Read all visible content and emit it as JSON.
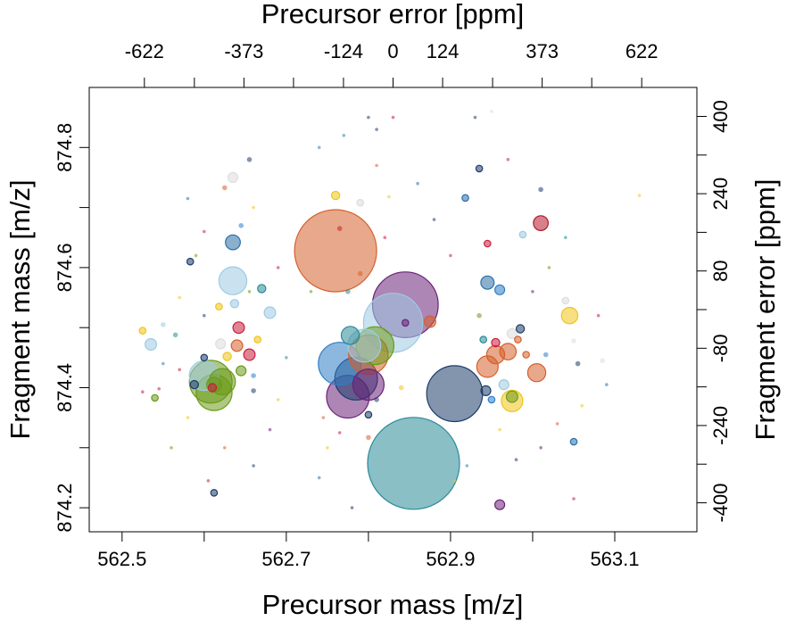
{
  "chart_data": {
    "type": "scatter",
    "xlabel": "Precursor mass [m/z]",
    "ylabel": "Fragment mass [m/z]",
    "top_label": "Precursor error [ppm]",
    "right_label": "Fragment error [ppm]",
    "xlim": [
      562.46,
      563.2
    ],
    "ylim": [
      874.16,
      874.9
    ],
    "top_lim": [
      -760,
      760
    ],
    "right_lim": [
      -460,
      460
    ],
    "x_ticks": [
      562.5,
      562.7,
      562.9,
      563.1
    ],
    "x_tick_labels": [
      "562.5",
      "562.7",
      "562.9",
      "563.1"
    ],
    "y_ticks": [
      874.2,
      874.4,
      874.6,
      874.8
    ],
    "y_tick_labels": [
      "874.2",
      "874.4",
      "874.6",
      "874.8"
    ],
    "top_ticks": [
      -622,
      -373,
      -124,
      0,
      124,
      373,
      622
    ],
    "top_tick_labels": [
      "-622",
      "-373",
      "-124",
      "0",
      "124",
      "373",
      "622"
    ],
    "right_ticks": [
      400,
      240,
      80,
      -80,
      -240,
      -400
    ],
    "right_tick_labels": [
      "400",
      "240",
      "80",
      "-80",
      "-240",
      "-400"
    ],
    "grid": false,
    "point_opacity": 0.55,
    "points": [
      {
        "x": 562.76,
        "y": 874.628,
        "r": 0.05,
        "color": "#D5602C"
      },
      {
        "x": 562.855,
        "y": 874.274,
        "r": 0.056,
        "color": "#2A8A98"
      },
      {
        "x": 562.845,
        "y": 874.538,
        "r": 0.04,
        "color": "#6A2278"
      },
      {
        "x": 562.83,
        "y": 874.508,
        "r": 0.036,
        "color": "#9ECAE1"
      },
      {
        "x": 562.905,
        "y": 874.39,
        "r": 0.034,
        "color": "#1D3D69"
      },
      {
        "x": 562.775,
        "y": 874.385,
        "r": 0.026,
        "color": "#6A2278"
      },
      {
        "x": 562.785,
        "y": 874.415,
        "r": 0.026,
        "color": "#1D3D69"
      },
      {
        "x": 562.765,
        "y": 874.44,
        "r": 0.026,
        "color": "#2E7EC7"
      },
      {
        "x": 562.8,
        "y": 874.455,
        "r": 0.024,
        "color": "#D5602C"
      },
      {
        "x": 562.808,
        "y": 874.47,
        "r": 0.023,
        "color": "#6C9A1A"
      },
      {
        "x": 562.795,
        "y": 874.47,
        "r": 0.02,
        "color": "#9ECAE1"
      },
      {
        "x": 562.8,
        "y": 874.405,
        "r": 0.019,
        "color": "#6A2278"
      },
      {
        "x": 562.778,
        "y": 874.487,
        "r": 0.011,
        "color": "#2A8A98"
      },
      {
        "x": 562.608,
        "y": 874.41,
        "r": 0.026,
        "color": "#6C9A1A"
      },
      {
        "x": 562.612,
        "y": 874.392,
        "r": 0.022,
        "color": "#6C9A1A"
      },
      {
        "x": 562.6,
        "y": 874.42,
        "r": 0.018,
        "color": "#9ECAE1"
      },
      {
        "x": 562.612,
        "y": 874.405,
        "r": 0.009,
        "color": "#6C9A1A"
      },
      {
        "x": 562.622,
        "y": 874.41,
        "r": 0.016,
        "color": "#6C9A1A"
      },
      {
        "x": 562.635,
        "y": 874.578,
        "r": 0.017,
        "color": "#9ECAE1"
      },
      {
        "x": 562.635,
        "y": 874.642,
        "r": 0.009,
        "color": "#2B6FA6"
      },
      {
        "x": 562.588,
        "y": 874.405,
        "r": 0.005,
        "color": "#1D3D69"
      },
      {
        "x": 562.64,
        "y": 874.47,
        "r": 0.007,
        "color": "#D5602C"
      },
      {
        "x": 562.642,
        "y": 874.5,
        "r": 0.007,
        "color": "#C81E3C"
      },
      {
        "x": 562.655,
        "y": 874.455,
        "r": 0.007,
        "color": "#C81E3C"
      },
      {
        "x": 562.645,
        "y": 874.428,
        "r": 0.006,
        "color": "#6C9A1A"
      },
      {
        "x": 562.637,
        "y": 874.54,
        "r": 0.005,
        "color": "#9ECAE1"
      },
      {
        "x": 562.628,
        "y": 874.452,
        "r": 0.005,
        "color": "#F0C419"
      },
      {
        "x": 562.61,
        "y": 874.4,
        "r": 0.005,
        "color": "#C81E3C"
      },
      {
        "x": 562.535,
        "y": 874.472,
        "r": 0.007,
        "color": "#9ECAE1"
      },
      {
        "x": 562.525,
        "y": 874.495,
        "r": 0.004,
        "color": "#F0C419"
      },
      {
        "x": 562.55,
        "y": 874.505,
        "r": 0.003,
        "color": "#9ECAE1"
      },
      {
        "x": 562.565,
        "y": 874.488,
        "r": 0.003,
        "color": "#2A8A98"
      },
      {
        "x": 562.545,
        "y": 874.398,
        "r": 0.002,
        "color": "#C81E3C"
      },
      {
        "x": 562.54,
        "y": 874.383,
        "r": 0.004,
        "color": "#6C9A1A"
      },
      {
        "x": 562.525,
        "y": 874.393,
        "r": 0.002,
        "color": "#C81E3C"
      },
      {
        "x": 562.583,
        "y": 874.61,
        "r": 0.004,
        "color": "#1D3D69"
      },
      {
        "x": 562.62,
        "y": 874.473,
        "r": 0.006,
        "color": "#DDDDDD"
      },
      {
        "x": 562.635,
        "y": 874.75,
        "r": 0.006,
        "color": "#DDDDDD"
      },
      {
        "x": 562.625,
        "y": 874.733,
        "r": 0.003,
        "color": "#D5602C"
      },
      {
        "x": 562.6,
        "y": 874.45,
        "r": 0.004,
        "color": "#1D3D69"
      },
      {
        "x": 562.665,
        "y": 874.48,
        "r": 0.004,
        "color": "#F0C419"
      },
      {
        "x": 562.67,
        "y": 874.565,
        "r": 0.005,
        "color": "#2A8A98"
      },
      {
        "x": 562.68,
        "y": 874.525,
        "r": 0.007,
        "color": "#9ECAE1"
      },
      {
        "x": 562.618,
        "y": 874.535,
        "r": 0.004,
        "color": "#F0C419"
      },
      {
        "x": 562.66,
        "y": 874.42,
        "r": 0.003,
        "color": "#2E7EC7"
      },
      {
        "x": 562.66,
        "y": 874.395,
        "r": 0.003,
        "color": "#1D3D69"
      },
      {
        "x": 562.612,
        "y": 874.225,
        "r": 0.004,
        "color": "#1D3D69"
      },
      {
        "x": 562.605,
        "y": 874.245,
        "r": 0.002,
        "color": "#C81E3C"
      },
      {
        "x": 562.975,
        "y": 874.378,
        "r": 0.013,
        "color": "#F0C419"
      },
      {
        "x": 562.975,
        "y": 874.385,
        "r": 0.007,
        "color": "#6C9A1A"
      },
      {
        "x": 562.945,
        "y": 874.435,
        "r": 0.013,
        "color": "#D5602C"
      },
      {
        "x": 562.955,
        "y": 874.455,
        "r": 0.011,
        "color": "#D5602C"
      },
      {
        "x": 562.97,
        "y": 874.46,
        "r": 0.01,
        "color": "#D5602C"
      },
      {
        "x": 563.005,
        "y": 874.425,
        "r": 0.011,
        "color": "#D5602C"
      },
      {
        "x": 562.945,
        "y": 874.575,
        "r": 0.008,
        "color": "#2B6FA6"
      },
      {
        "x": 562.96,
        "y": 874.563,
        "r": 0.006,
        "color": "#2E7EC7"
      },
      {
        "x": 562.975,
        "y": 874.49,
        "r": 0.006,
        "color": "#DDDDDD"
      },
      {
        "x": 562.985,
        "y": 874.498,
        "r": 0.005,
        "color": "#1D3D69"
      },
      {
        "x": 562.982,
        "y": 874.48,
        "r": 0.004,
        "color": "#D5602C"
      },
      {
        "x": 562.992,
        "y": 874.455,
        "r": 0.004,
        "color": "#D5602C"
      },
      {
        "x": 563.01,
        "y": 874.674,
        "r": 0.009,
        "color": "#B2182B"
      },
      {
        "x": 563.045,
        "y": 874.52,
        "r": 0.01,
        "color": "#F0C419"
      },
      {
        "x": 563.04,
        "y": 874.545,
        "r": 0.004,
        "color": "#DDDDDD"
      },
      {
        "x": 563.05,
        "y": 874.478,
        "r": 0.003,
        "color": "#DDDDDD"
      },
      {
        "x": 563.085,
        "y": 874.445,
        "r": 0.003,
        "color": "#DDDDDD"
      },
      {
        "x": 563.05,
        "y": 874.31,
        "r": 0.004,
        "color": "#2B6FA6"
      },
      {
        "x": 563.055,
        "y": 874.44,
        "r": 0.003,
        "color": "#1D3D69"
      },
      {
        "x": 562.943,
        "y": 874.395,
        "r": 0.006,
        "color": "#1D3D69"
      },
      {
        "x": 562.965,
        "y": 874.405,
        "r": 0.006,
        "color": "#9ECAE1"
      },
      {
        "x": 562.955,
        "y": 874.475,
        "r": 0.005,
        "color": "#C81E3C"
      },
      {
        "x": 562.94,
        "y": 874.48,
        "r": 0.004,
        "color": "#2A8A98"
      },
      {
        "x": 562.935,
        "y": 874.52,
        "r": 0.003,
        "color": "#6C9A1A"
      },
      {
        "x": 562.95,
        "y": 874.38,
        "r": 0.004,
        "color": "#2E7EC7"
      },
      {
        "x": 562.935,
        "y": 874.765,
        "r": 0.004,
        "color": "#1D3D69"
      },
      {
        "x": 562.918,
        "y": 874.716,
        "r": 0.004,
        "color": "#2B6FA6"
      },
      {
        "x": 562.945,
        "y": 874.64,
        "r": 0.004,
        "color": "#C81E3C"
      },
      {
        "x": 562.988,
        "y": 874.655,
        "r": 0.004,
        "color": "#9ECAE1"
      },
      {
        "x": 563.01,
        "y": 874.73,
        "r": 0.003,
        "color": "#1D3D69"
      },
      {
        "x": 563.016,
        "y": 874.455,
        "r": 0.003,
        "color": "#2E7EC7"
      },
      {
        "x": 562.96,
        "y": 874.205,
        "r": 0.006,
        "color": "#6A2278"
      },
      {
        "x": 562.905,
        "y": 874.245,
        "r": 0.002,
        "color": "#F0C419"
      },
      {
        "x": 562.76,
        "y": 874.72,
        "r": 0.005,
        "color": "#F0C419"
      },
      {
        "x": 562.79,
        "y": 874.708,
        "r": 0.004,
        "color": "#DDDDDD"
      },
      {
        "x": 562.765,
        "y": 874.665,
        "r": 0.003,
        "color": "#C81E3C"
      },
      {
        "x": 562.79,
        "y": 874.59,
        "r": 0.003,
        "color": "#D5602C"
      },
      {
        "x": 562.845,
        "y": 874.508,
        "r": 0.004,
        "color": "#6A2278"
      },
      {
        "x": 562.875,
        "y": 874.51,
        "r": 0.007,
        "color": "#D5602C"
      },
      {
        "x": 562.8,
        "y": 874.355,
        "r": 0.004,
        "color": "#1D3D69"
      },
      {
        "x": 562.81,
        "y": 874.38,
        "r": 0.003,
        "color": "#1D3D69"
      },
      {
        "x": 562.8,
        "y": 874.317,
        "r": 0.003,
        "color": "#D5602C"
      },
      {
        "x": 562.765,
        "y": 874.325,
        "r": 0.002,
        "color": "#C81E3C"
      },
      {
        "x": 562.84,
        "y": 874.4,
        "r": 0.003,
        "color": "#F0C419"
      },
      {
        "x": 562.81,
        "y": 874.83,
        "r": 0.002,
        "color": "#1D3D69"
      },
      {
        "x": 562.81,
        "y": 874.77,
        "r": 0.002,
        "color": "#D5602C"
      },
      {
        "x": 562.825,
        "y": 874.718,
        "r": 0.002,
        "color": "#F0C419"
      },
      {
        "x": 562.775,
        "y": 874.56,
        "r": 0.003,
        "color": "#2A8A98"
      },
      {
        "x": 562.82,
        "y": 874.65,
        "r": 0.002,
        "color": "#C81E3C"
      },
      {
        "x": 563.13,
        "y": 874.72,
        "r": 0.002,
        "color": "#F0C419"
      },
      {
        "x": 563.0,
        "y": 874.56,
        "r": 0.002,
        "color": "#6A2278"
      },
      {
        "x": 563.02,
        "y": 874.6,
        "r": 0.002,
        "color": "#6C9A1A"
      },
      {
        "x": 563.04,
        "y": 874.65,
        "r": 0.002,
        "color": "#2A8A98"
      },
      {
        "x": 563.08,
        "y": 874.52,
        "r": 0.002,
        "color": "#C81E3C"
      },
      {
        "x": 563.06,
        "y": 874.37,
        "r": 0.002,
        "color": "#F0C419"
      },
      {
        "x": 563.09,
        "y": 874.405,
        "r": 0.002,
        "color": "#2B6FA6"
      },
      {
        "x": 563.03,
        "y": 874.34,
        "r": 0.002,
        "color": "#D5602C"
      },
      {
        "x": 563.01,
        "y": 874.3,
        "r": 0.002,
        "color": "#6A2278"
      },
      {
        "x": 562.98,
        "y": 874.28,
        "r": 0.002,
        "color": "#1D3D69"
      },
      {
        "x": 562.92,
        "y": 874.27,
        "r": 0.002,
        "color": "#2A8A98"
      },
      {
        "x": 563.05,
        "y": 874.215,
        "r": 0.002,
        "color": "#C81E3C"
      },
      {
        "x": 562.96,
        "y": 874.33,
        "r": 0.002,
        "color": "#F0C419"
      },
      {
        "x": 562.9,
        "y": 874.62,
        "r": 0.002,
        "color": "#C81E3C"
      },
      {
        "x": 562.88,
        "y": 874.68,
        "r": 0.002,
        "color": "#1D3D69"
      },
      {
        "x": 562.86,
        "y": 874.74,
        "r": 0.002,
        "color": "#2B6FA6"
      },
      {
        "x": 562.93,
        "y": 874.85,
        "r": 0.002,
        "color": "#1D3D69"
      },
      {
        "x": 562.95,
        "y": 874.86,
        "r": 0.002,
        "color": "#DDDDDD"
      },
      {
        "x": 562.97,
        "y": 874.78,
        "r": 0.002,
        "color": "#C81E3C"
      },
      {
        "x": 562.58,
        "y": 874.715,
        "r": 0.002,
        "color": "#2B6FA6"
      },
      {
        "x": 562.59,
        "y": 874.62,
        "r": 0.002,
        "color": "#6C9A1A"
      },
      {
        "x": 562.57,
        "y": 874.55,
        "r": 0.002,
        "color": "#F0C419"
      },
      {
        "x": 562.6,
        "y": 874.66,
        "r": 0.002,
        "color": "#C81E3C"
      },
      {
        "x": 562.655,
        "y": 874.78,
        "r": 0.003,
        "color": "#1D3D69"
      },
      {
        "x": 562.645,
        "y": 874.67,
        "r": 0.003,
        "color": "#2E7EC7"
      },
      {
        "x": 562.66,
        "y": 874.7,
        "r": 0.002,
        "color": "#F0C419"
      },
      {
        "x": 562.655,
        "y": 874.56,
        "r": 0.002,
        "color": "#6C9A1A"
      },
      {
        "x": 562.69,
        "y": 874.6,
        "r": 0.002,
        "color": "#C81E3C"
      },
      {
        "x": 562.7,
        "y": 874.45,
        "r": 0.002,
        "color": "#2A8A98"
      },
      {
        "x": 562.69,
        "y": 874.38,
        "r": 0.002,
        "color": "#F0C419"
      },
      {
        "x": 562.68,
        "y": 874.33,
        "r": 0.002,
        "color": "#6A2278"
      },
      {
        "x": 562.66,
        "y": 874.27,
        "r": 0.002,
        "color": "#1D3D69"
      },
      {
        "x": 562.625,
        "y": 874.3,
        "r": 0.002,
        "color": "#D5602C"
      },
      {
        "x": 562.58,
        "y": 874.35,
        "r": 0.002,
        "color": "#F0C419"
      },
      {
        "x": 562.56,
        "y": 874.3,
        "r": 0.002,
        "color": "#6C9A1A"
      },
      {
        "x": 562.55,
        "y": 874.44,
        "r": 0.002,
        "color": "#2E7EC7"
      },
      {
        "x": 562.6,
        "y": 874.52,
        "r": 0.002,
        "color": "#1D3D69"
      },
      {
        "x": 562.57,
        "y": 874.43,
        "r": 0.002,
        "color": "#C81E3C"
      },
      {
        "x": 562.74,
        "y": 874.25,
        "r": 0.002,
        "color": "#2B6FA6"
      },
      {
        "x": 562.75,
        "y": 874.3,
        "r": 0.002,
        "color": "#F0C419"
      },
      {
        "x": 562.78,
        "y": 874.2,
        "r": 0.002,
        "color": "#1D3D69"
      },
      {
        "x": 562.745,
        "y": 874.35,
        "r": 0.002,
        "color": "#D5602C"
      },
      {
        "x": 562.73,
        "y": 874.56,
        "r": 0.002,
        "color": "#6C9A1A"
      },
      {
        "x": 562.74,
        "y": 874.8,
        "r": 0.002,
        "color": "#2E7EC7"
      },
      {
        "x": 562.8,
        "y": 874.85,
        "r": 0.002,
        "color": "#1D3D69"
      },
      {
        "x": 562.77,
        "y": 874.82,
        "r": 0.002,
        "color": "#2A8A98"
      },
      {
        "x": 562.83,
        "y": 874.85,
        "r": 0.002,
        "color": "#C81E3C"
      }
    ]
  }
}
